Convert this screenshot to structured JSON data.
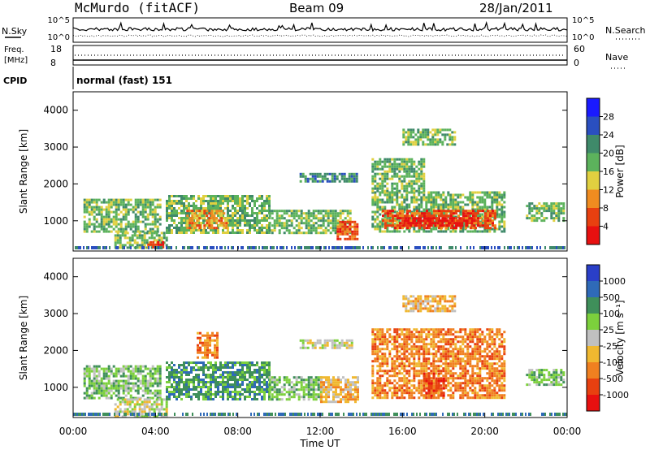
{
  "header": {
    "station": "McMurdo (fitACF)",
    "beam": "Beam 09",
    "date": "28/Jan/2011"
  },
  "status_panels": {
    "nsky_label": "N.Sky",
    "nsky_ticks": [
      "10^5",
      "10^0"
    ],
    "nsearch_label": "N.Search",
    "nsearch_ticks": [
      "10^5",
      "10^0"
    ],
    "freq_label": "Freq.",
    "freq_unit": "[MHz]",
    "freq_ticks": [
      "18",
      "8"
    ],
    "nave_label": "Nave",
    "nave_ticks": [
      "60",
      "0"
    ],
    "cpid_label": "CPID",
    "cpid_value": "normal (fast) 151"
  },
  "chart_data": [
    {
      "type": "heatmap",
      "name": "power",
      "ylabel": "Slant Range [km]",
      "xlabel": "",
      "ylim": [
        180,
        4500
      ],
      "y_ticks": [
        "1000",
        "2000",
        "3000",
        "4000"
      ],
      "colorbar_label": "Power [dB]",
      "colorbar_ticks": [
        "4",
        "8",
        "12",
        "16",
        "20",
        "24",
        "28"
      ],
      "colorbar_colors": [
        "#1a1aff",
        "#2a4fc0",
        "#3f8a6a",
        "#5cb25c",
        "#e0d040",
        "#f08c20",
        "#e84010",
        "#e81010"
      ],
      "regions": [
        {
          "t0": 0.5,
          "t1": 4.2,
          "r0": 700,
          "r1": 1600,
          "level": 3
        },
        {
          "t0": 2.0,
          "t1": 4.5,
          "r0": 250,
          "r1": 700,
          "level": 3
        },
        {
          "t0": 3.6,
          "t1": 4.4,
          "r0": 300,
          "r1": 450,
          "level": 6
        },
        {
          "t0": 4.5,
          "t1": 9.5,
          "r0": 700,
          "r1": 1700,
          "level": 3
        },
        {
          "t0": 5.5,
          "t1": 7.5,
          "r0": 800,
          "r1": 1300,
          "level": 5
        },
        {
          "t0": 9.5,
          "t1": 13.5,
          "r0": 700,
          "r1": 1300,
          "level": 3
        },
        {
          "t0": 12.8,
          "t1": 13.8,
          "r0": 500,
          "r1": 1000,
          "level": 6
        },
        {
          "t0": 14.5,
          "t1": 21.0,
          "r0": 700,
          "r1": 1800,
          "level": 3
        },
        {
          "t0": 15.0,
          "t1": 20.5,
          "r0": 800,
          "r1": 1300,
          "level": 6
        },
        {
          "t0": 16.0,
          "t1": 19.5,
          "r0": 900,
          "r1": 1100,
          "level": 7
        },
        {
          "t0": 11.0,
          "t1": 13.8,
          "r0": 2100,
          "r1": 2300,
          "level": 2
        },
        {
          "t0": 14.5,
          "t1": 17.0,
          "r0": 1800,
          "r1": 2700,
          "level": 3
        },
        {
          "t0": 16.0,
          "t1": 18.5,
          "r0": 3100,
          "r1": 3500,
          "level": 3
        },
        {
          "t0": 22.0,
          "t1": 23.8,
          "r0": 1000,
          "r1": 1500,
          "level": 3
        }
      ]
    },
    {
      "type": "heatmap",
      "name": "velocity",
      "ylabel": "Slant Range [km]",
      "xlabel": "Time UT",
      "ylim": [
        180,
        4500
      ],
      "y_ticks": [
        "1000",
        "2000",
        "3000",
        "4000"
      ],
      "x_ticks": [
        "00:00",
        "04:00",
        "08:00",
        "12:00",
        "16:00",
        "20:00",
        "00:00"
      ],
      "colorbar_label": "Velocity [m s⁻¹]",
      "colorbar_ticks": [
        "1000",
        "500",
        "100",
        "25",
        "-25",
        "-100",
        "-500",
        "-1000"
      ],
      "colorbar_colors": [
        "#2a3fc8",
        "#2f6ab8",
        "#3f8f5a",
        "#7cd03c",
        "#c0c0c0",
        "#f0b830",
        "#f08020",
        "#e84010",
        "#e81010"
      ],
      "regions": [
        {
          "t0": 0.5,
          "t1": 4.2,
          "r0": 700,
          "r1": 1600,
          "level": 3
        },
        {
          "t0": 2.0,
          "t1": 4.5,
          "r0": 200,
          "r1": 700,
          "level": 4
        },
        {
          "t0": 4.5,
          "t1": 9.5,
          "r0": 700,
          "r1": 1700,
          "level": 2
        },
        {
          "t0": 9.5,
          "t1": 12.0,
          "r0": 700,
          "r1": 1300,
          "level": 3
        },
        {
          "t0": 12.0,
          "t1": 13.8,
          "r0": 600,
          "r1": 1300,
          "level": 5
        },
        {
          "t0": 14.5,
          "t1": 21.0,
          "r0": 700,
          "r1": 2600,
          "level": 6
        },
        {
          "t0": 17.0,
          "t1": 18.0,
          "r0": 800,
          "r1": 1400,
          "level": 7
        },
        {
          "t0": 11.0,
          "t1": 13.5,
          "r0": 2100,
          "r1": 2300,
          "level": 4
        },
        {
          "t0": 6.0,
          "t1": 7.0,
          "r0": 1800,
          "r1": 2500,
          "level": 6
        },
        {
          "t0": 16.0,
          "t1": 18.5,
          "r0": 3100,
          "r1": 3500,
          "level": 5
        },
        {
          "t0": 22.0,
          "t1": 23.8,
          "r0": 1100,
          "r1": 1500,
          "level": 3
        }
      ]
    }
  ]
}
